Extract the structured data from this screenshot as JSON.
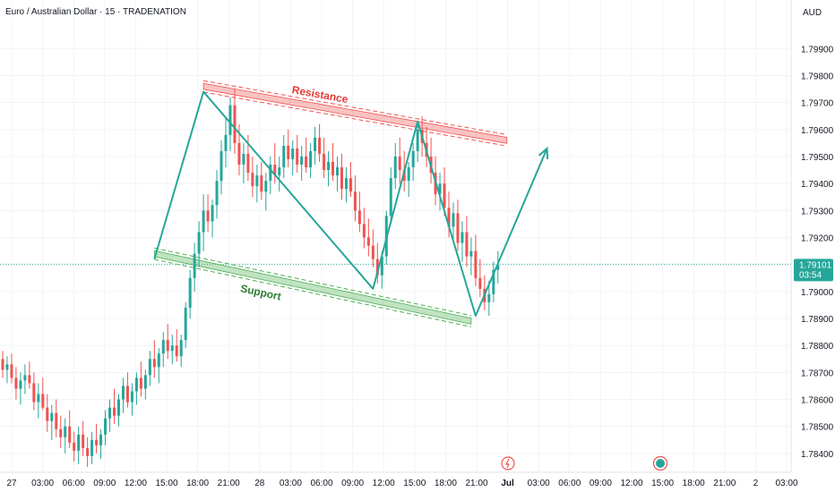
{
  "header": {
    "title": "Euro / Australian Dollar · 15 · TRADENATION",
    "currency": "AUD"
  },
  "chart_data": {
    "type": "candlestick",
    "symbol": "Euro / Australian Dollar",
    "interval": "15",
    "source": "TRADENATION",
    "currency": "AUD",
    "ylim": [
      1.7833,
      1.8008
    ],
    "y_ticks": [
      "1.79900",
      "1.79800",
      "1.79700",
      "1.79600",
      "1.79500",
      "1.79400",
      "1.79300",
      "1.79200",
      "1.79000",
      "1.78900",
      "1.78800",
      "1.78700",
      "1.78600",
      "1.78500",
      "1.78400"
    ],
    "x_ticks": [
      "27",
      "03:00",
      "06:00",
      "09:00",
      "12:00",
      "15:00",
      "18:00",
      "21:00",
      "28",
      "03:00",
      "06:00",
      "09:00",
      "12:00",
      "15:00",
      "18:00",
      "21:00",
      "Jul",
      "03:00",
      "06:00",
      "09:00",
      "12:00",
      "15:00",
      "18:00",
      "21:00",
      "2",
      "03:00"
    ],
    "current_price": "1.79101",
    "countdown": "03:54",
    "colors": {
      "up": "#26a69a",
      "down": "#ef5350",
      "pattern": "#26a69a",
      "resistance": "#ef5350",
      "support": "#4caf50"
    },
    "candles": [
      [
        1.7875,
        1.7878,
        1.7868,
        1.7871
      ],
      [
        1.7871,
        1.7876,
        1.7866,
        1.7873
      ],
      [
        1.7873,
        1.7877,
        1.7866,
        1.7868
      ],
      [
        1.7868,
        1.7872,
        1.786,
        1.7864
      ],
      [
        1.7864,
        1.787,
        1.7858,
        1.7867
      ],
      [
        1.7867,
        1.7873,
        1.7862,
        1.7869
      ],
      [
        1.7869,
        1.7874,
        1.7864,
        1.7866
      ],
      [
        1.7866,
        1.787,
        1.7856,
        1.7859
      ],
      [
        1.7859,
        1.7866,
        1.7853,
        1.7862
      ],
      [
        1.7862,
        1.7868,
        1.7856,
        1.7857
      ],
      [
        1.7857,
        1.7862,
        1.7848,
        1.7852
      ],
      [
        1.7852,
        1.7858,
        1.7845,
        1.7855
      ],
      [
        1.7855,
        1.786,
        1.7846,
        1.7849
      ],
      [
        1.7849,
        1.7854,
        1.7842,
        1.7846
      ],
      [
        1.7846,
        1.7853,
        1.784,
        1.785
      ],
      [
        1.785,
        1.7856,
        1.7842,
        1.7844
      ],
      [
        1.7844,
        1.7848,
        1.7837,
        1.7841
      ],
      [
        1.7841,
        1.785,
        1.7836,
        1.7847
      ],
      [
        1.7847,
        1.7852,
        1.7839,
        1.7842
      ],
      [
        1.7842,
        1.7846,
        1.7835,
        1.7839
      ],
      [
        1.7839,
        1.7848,
        1.7836,
        1.7845
      ],
      [
        1.7845,
        1.7851,
        1.784,
        1.7843
      ],
      [
        1.7843,
        1.7849,
        1.7838,
        1.7847
      ],
      [
        1.7847,
        1.7856,
        1.7843,
        1.7853
      ],
      [
        1.7853,
        1.786,
        1.7848,
        1.7857
      ],
      [
        1.7857,
        1.7864,
        1.7851,
        1.7854
      ],
      [
        1.7854,
        1.7862,
        1.785,
        1.786
      ],
      [
        1.786,
        1.7868,
        1.7855,
        1.7865
      ],
      [
        1.7865,
        1.787,
        1.7857,
        1.7859
      ],
      [
        1.7859,
        1.7866,
        1.7854,
        1.7863
      ],
      [
        1.7863,
        1.787,
        1.7858,
        1.7868
      ],
      [
        1.7868,
        1.7874,
        1.7861,
        1.7864
      ],
      [
        1.7864,
        1.7871,
        1.786,
        1.7869
      ],
      [
        1.7869,
        1.7878,
        1.7865,
        1.7875
      ],
      [
        1.7875,
        1.7882,
        1.7868,
        1.7872
      ],
      [
        1.7872,
        1.7879,
        1.7866,
        1.7877
      ],
      [
        1.7877,
        1.7885,
        1.7872,
        1.7882
      ],
      [
        1.7882,
        1.7888,
        1.7875,
        1.7878
      ],
      [
        1.7878,
        1.7884,
        1.7873,
        1.788
      ],
      [
        1.788,
        1.7886,
        1.7874,
        1.7876
      ],
      [
        1.7876,
        1.7884,
        1.7872,
        1.7882
      ],
      [
        1.7882,
        1.7896,
        1.7879,
        1.7894
      ],
      [
        1.7894,
        1.7908,
        1.789,
        1.7905
      ],
      [
        1.7905,
        1.7918,
        1.79,
        1.7914
      ],
      [
        1.7914,
        1.7926,
        1.7909,
        1.7922
      ],
      [
        1.7922,
        1.7936,
        1.7915,
        1.793
      ],
      [
        1.793,
        1.7936,
        1.7922,
        1.7926
      ],
      [
        1.7926,
        1.7934,
        1.792,
        1.7932
      ],
      [
        1.7932,
        1.7945,
        1.7927,
        1.7941
      ],
      [
        1.7941,
        1.7956,
        1.7936,
        1.7952
      ],
      [
        1.7952,
        1.7964,
        1.7946,
        1.7958
      ],
      [
        1.7958,
        1.7972,
        1.7952,
        1.7969
      ],
      [
        1.7969,
        1.7975,
        1.7951,
        1.7955
      ],
      [
        1.7955,
        1.7962,
        1.7943,
        1.7947
      ],
      [
        1.7947,
        1.7955,
        1.794,
        1.7951
      ],
      [
        1.7951,
        1.7958,
        1.7941,
        1.7944
      ],
      [
        1.7944,
        1.795,
        1.7935,
        1.7939
      ],
      [
        1.7939,
        1.7947,
        1.7933,
        1.7943
      ],
      [
        1.7943,
        1.7948,
        1.7934,
        1.7937
      ],
      [
        1.7937,
        1.7944,
        1.793,
        1.7941
      ],
      [
        1.7941,
        1.795,
        1.7936,
        1.7947
      ],
      [
        1.7947,
        1.7955,
        1.794,
        1.7943
      ],
      [
        1.7943,
        1.795,
        1.7937,
        1.7946
      ],
      [
        1.7946,
        1.7958,
        1.7942,
        1.7954
      ],
      [
        1.7954,
        1.796,
        1.7946,
        1.7949
      ],
      [
        1.7949,
        1.7956,
        1.7943,
        1.7953
      ],
      [
        1.7953,
        1.7958,
        1.7944,
        1.7947
      ],
      [
        1.7947,
        1.7954,
        1.7941,
        1.795
      ],
      [
        1.795,
        1.7957,
        1.7944,
        1.7946
      ],
      [
        1.7946,
        1.7955,
        1.7942,
        1.7952
      ],
      [
        1.7952,
        1.7961,
        1.7947,
        1.7957
      ],
      [
        1.7957,
        1.7962,
        1.7948,
        1.7951
      ],
      [
        1.7951,
        1.7957,
        1.7942,
        1.7945
      ],
      [
        1.7945,
        1.7952,
        1.7939,
        1.7948
      ],
      [
        1.7948,
        1.7955,
        1.7941,
        1.7943
      ],
      [
        1.7943,
        1.795,
        1.7937,
        1.7946
      ],
      [
        1.7946,
        1.7951,
        1.7934,
        1.7938
      ],
      [
        1.7938,
        1.7946,
        1.7933,
        1.7942
      ],
      [
        1.7942,
        1.7948,
        1.7935,
        1.7937
      ],
      [
        1.7937,
        1.7943,
        1.7926,
        1.793
      ],
      [
        1.793,
        1.7937,
        1.7922,
        1.7925
      ],
      [
        1.7925,
        1.7931,
        1.7916,
        1.792
      ],
      [
        1.792,
        1.7927,
        1.7913,
        1.7917
      ],
      [
        1.7917,
        1.7923,
        1.7909,
        1.7912
      ],
      [
        1.7912,
        1.7918,
        1.7903,
        1.7906
      ],
      [
        1.7906,
        1.7915,
        1.7901,
        1.7913
      ],
      [
        1.7913,
        1.793,
        1.791,
        1.7928
      ],
      [
        1.7928,
        1.7946,
        1.7925,
        1.7942
      ],
      [
        1.7942,
        1.7955,
        1.7938,
        1.795
      ],
      [
        1.795,
        1.7957,
        1.794,
        1.7945
      ],
      [
        1.7945,
        1.7952,
        1.7937,
        1.7941
      ],
      [
        1.7941,
        1.7948,
        1.7935,
        1.7946
      ],
      [
        1.7946,
        1.7955,
        1.7941,
        1.7952
      ],
      [
        1.7952,
        1.7962,
        1.7948,
        1.796
      ],
      [
        1.796,
        1.7965,
        1.795,
        1.7955
      ],
      [
        1.7955,
        1.7961,
        1.7946,
        1.795
      ],
      [
        1.795,
        1.7957,
        1.794,
        1.7944
      ],
      [
        1.7944,
        1.795,
        1.7932,
        1.7936
      ],
      [
        1.7936,
        1.7944,
        1.793,
        1.794
      ],
      [
        1.794,
        1.7946,
        1.7928,
        1.7931
      ],
      [
        1.7931,
        1.7937,
        1.792,
        1.7924
      ],
      [
        1.7924,
        1.7933,
        1.7919,
        1.7929
      ],
      [
        1.7929,
        1.7934,
        1.7915,
        1.7918
      ],
      [
        1.7918,
        1.7926,
        1.7911,
        1.7922
      ],
      [
        1.7922,
        1.7928,
        1.7909,
        1.7913
      ],
      [
        1.7913,
        1.792,
        1.7906,
        1.7915
      ],
      [
        1.7915,
        1.7921,
        1.7902,
        1.7905
      ],
      [
        1.7905,
        1.7912,
        1.7898,
        1.7901
      ],
      [
        1.7901,
        1.7906,
        1.7893,
        1.7896
      ],
      [
        1.7896,
        1.7904,
        1.7891,
        1.7899
      ],
      [
        1.7899,
        1.7911,
        1.7896,
        1.7908
      ],
      [
        1.7908,
        1.7915,
        1.7903,
        1.791
      ]
    ],
    "annotations": {
      "resistance": {
        "label": "Resistance",
        "x_index": [
          45,
          113
        ],
        "values": [
          1.7976,
          1.7956
        ],
        "band": 5e-05
      },
      "support": {
        "label": "Support",
        "x_index": [
          34,
          105
        ],
        "values": [
          1.7914,
          1.7889
        ],
        "band": 5e-05
      },
      "zigzag": [
        {
          "i": 34,
          "v": 1.7912
        },
        {
          "i": 45,
          "v": 1.7974
        },
        {
          "i": 83,
          "v": 1.7901
        },
        {
          "i": 93,
          "v": 1.7963
        },
        {
          "i": 106,
          "v": 1.7891
        },
        {
          "i": 122,
          "v": 1.7953
        }
      ]
    }
  }
}
